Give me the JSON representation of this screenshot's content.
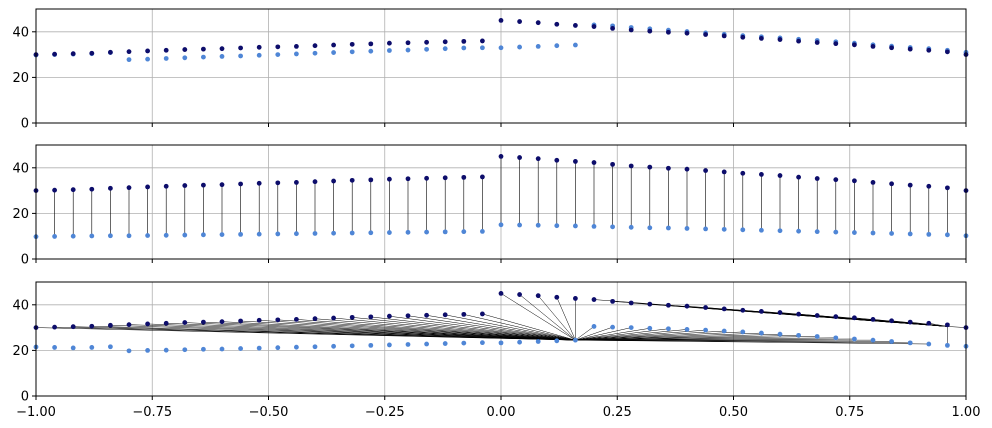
{
  "chart_data": [
    {
      "type": "scatter",
      "panel": "top",
      "xlim": [
        -1,
        1
      ],
      "ylim": [
        0,
        50
      ],
      "grid": true,
      "yticks": [
        "0",
        "20",
        "40"
      ],
      "series": [
        {
          "color": "#0d0d6b",
          "x": [
            -1.0,
            -0.96,
            -0.92,
            -0.88,
            -0.84,
            -0.8,
            -0.76,
            -0.72,
            -0.68,
            -0.64,
            -0.6,
            -0.56,
            -0.52,
            -0.48,
            -0.44,
            -0.4,
            -0.36,
            -0.32,
            -0.28,
            -0.24,
            -0.2,
            -0.16,
            -0.12,
            -0.08,
            -0.04,
            0.0,
            0.04,
            0.08,
            0.12,
            0.16,
            0.2,
            0.24,
            0.28,
            0.32,
            0.36,
            0.4,
            0.44,
            0.48,
            0.52,
            0.56,
            0.6,
            0.64,
            0.68,
            0.72,
            0.76,
            0.8,
            0.84,
            0.88,
            0.92,
            0.96,
            1.0
          ],
          "values": [
            30,
            30.2,
            30.4,
            30.6,
            31,
            31.3,
            31.6,
            31.9,
            32.2,
            32.4,
            32.6,
            32.9,
            33.2,
            33.4,
            33.6,
            33.9,
            34.2,
            34.5,
            34.7,
            35,
            35.2,
            35.4,
            35.6,
            35.8,
            36,
            45,
            44.5,
            44,
            43.3,
            42.8,
            42.3,
            41.5,
            40.8,
            40.3,
            39.8,
            39.4,
            38.8,
            38.2,
            37.6,
            37.1,
            36.6,
            35.9,
            35.3,
            34.8,
            34.3,
            33.6,
            33,
            32.4,
            31.9,
            31.2,
            30
          ]
        },
        {
          "color": "#4f86d6",
          "x": [
            -1.0,
            -0.96,
            -0.92,
            -0.88,
            -0.84,
            -0.8,
            -0.76,
            -0.72,
            -0.68,
            -0.64,
            -0.6,
            -0.56,
            -0.52,
            -0.48,
            -0.44,
            -0.4,
            -0.36,
            -0.32,
            -0.28,
            -0.24,
            -0.2,
            -0.16,
            -0.12,
            -0.08,
            -0.04,
            0.0,
            0.04,
            0.08,
            0.12,
            0.16,
            0.2,
            0.24,
            0.28,
            0.32,
            0.36,
            0.4,
            0.44,
            0.48,
            0.52,
            0.56,
            0.6,
            0.64,
            0.68,
            0.72,
            0.76,
            0.8,
            0.84,
            0.88,
            0.92,
            0.96,
            1.0
          ],
          "values": [
            29.8,
            30,
            30.2,
            30.4,
            30.9,
            27.8,
            28,
            28.3,
            28.6,
            28.9,
            29.2,
            29.4,
            29.7,
            30,
            30.3,
            30.6,
            30.9,
            31.2,
            31.5,
            31.8,
            32,
            32.3,
            32.6,
            32.9,
            33,
            33,
            33.3,
            33.6,
            33.9,
            34.2,
            43,
            42.6,
            41.9,
            41.3,
            40.7,
            40.1,
            39.5,
            38.9,
            38.3,
            37.8,
            37.3,
            36.7,
            36.2,
            35.6,
            35,
            34.3,
            33.7,
            33.1,
            32.6,
            31.9,
            31
          ]
        }
      ]
    },
    {
      "type": "scatter",
      "panel": "middle",
      "xlim": [
        -1,
        1
      ],
      "ylim": [
        0,
        50
      ],
      "grid": true,
      "yticks": [
        "0",
        "20",
        "40"
      ],
      "series": [
        {
          "color": "#0d0d6b",
          "x": [
            -1.0,
            -0.96,
            -0.92,
            -0.88,
            -0.84,
            -0.8,
            -0.76,
            -0.72,
            -0.68,
            -0.64,
            -0.6,
            -0.56,
            -0.52,
            -0.48,
            -0.44,
            -0.4,
            -0.36,
            -0.32,
            -0.28,
            -0.24,
            -0.2,
            -0.16,
            -0.12,
            -0.08,
            -0.04,
            0.0,
            0.04,
            0.08,
            0.12,
            0.16,
            0.2,
            0.24,
            0.28,
            0.32,
            0.36,
            0.4,
            0.44,
            0.48,
            0.52,
            0.56,
            0.6,
            0.64,
            0.68,
            0.72,
            0.76,
            0.8,
            0.84,
            0.88,
            0.92,
            0.96,
            1.0
          ],
          "values": [
            30,
            30.2,
            30.4,
            30.6,
            31,
            31.3,
            31.6,
            31.9,
            32.2,
            32.4,
            32.6,
            32.9,
            33.2,
            33.4,
            33.6,
            33.9,
            34.2,
            34.5,
            34.7,
            35,
            35.2,
            35.4,
            35.6,
            35.8,
            36,
            45,
            44.5,
            44,
            43.3,
            42.8,
            42.3,
            41.5,
            40.8,
            40.3,
            39.8,
            39.4,
            38.8,
            38.2,
            37.6,
            37.1,
            36.6,
            35.9,
            35.3,
            34.8,
            34.3,
            33.6,
            33,
            32.4,
            31.9,
            31.2,
            30
          ]
        },
        {
          "color": "#4f86d6",
          "x": [
            -1.0,
            -0.96,
            -0.92,
            -0.88,
            -0.84,
            -0.8,
            -0.76,
            -0.72,
            -0.68,
            -0.64,
            -0.6,
            -0.56,
            -0.52,
            -0.48,
            -0.44,
            -0.4,
            -0.36,
            -0.32,
            -0.28,
            -0.24,
            -0.2,
            -0.16,
            -0.12,
            -0.08,
            -0.04,
            0.0,
            0.04,
            0.08,
            0.12,
            0.16,
            0.2,
            0.24,
            0.28,
            0.32,
            0.36,
            0.4,
            0.44,
            0.48,
            0.52,
            0.56,
            0.6,
            0.64,
            0.68,
            0.72,
            0.76,
            0.8,
            0.84,
            0.88,
            0.92,
            0.96,
            1.0
          ],
          "values": [
            9.8,
            9.9,
            10,
            10.1,
            10.2,
            10.2,
            10.3,
            10.4,
            10.5,
            10.6,
            10.7,
            10.8,
            10.9,
            11,
            11.1,
            11.2,
            11.3,
            11.4,
            11.5,
            11.6,
            11.7,
            11.8,
            11.9,
            12,
            12.1,
            15,
            14.9,
            14.8,
            14.6,
            14.5,
            14.3,
            14.1,
            13.9,
            13.7,
            13.6,
            13.4,
            13.2,
            13,
            12.8,
            12.6,
            12.4,
            12.2,
            12,
            11.8,
            11.6,
            11.4,
            11.2,
            11,
            10.8,
            10.6,
            10.2
          ]
        }
      ]
    },
    {
      "type": "scatter",
      "panel": "bottom",
      "xlim": [
        -1,
        1
      ],
      "ylim": [
        0,
        50
      ],
      "grid": true,
      "yticks": [
        "0",
        "20",
        "40"
      ],
      "xticks": [
        "−1.00",
        "−0.75",
        "−0.50",
        "−0.25",
        "0.00",
        "0.25",
        "0.50",
        "0.75",
        "1.00"
      ],
      "hub_left": [
        0.16,
        24.5
      ],
      "hub_right": [
        0.96,
        30.5
      ],
      "series": [
        {
          "color": "#0d0d6b",
          "x": [
            -1.0,
            -0.96,
            -0.92,
            -0.88,
            -0.84,
            -0.8,
            -0.76,
            -0.72,
            -0.68,
            -0.64,
            -0.6,
            -0.56,
            -0.52,
            -0.48,
            -0.44,
            -0.4,
            -0.36,
            -0.32,
            -0.28,
            -0.24,
            -0.2,
            -0.16,
            -0.12,
            -0.08,
            -0.04,
            0.0,
            0.04,
            0.08,
            0.12,
            0.16,
            0.2,
            0.24,
            0.28,
            0.32,
            0.36,
            0.4,
            0.44,
            0.48,
            0.52,
            0.56,
            0.6,
            0.64,
            0.68,
            0.72,
            0.76,
            0.8,
            0.84,
            0.88,
            0.92,
            0.96,
            1.0
          ],
          "values": [
            30,
            30.2,
            30.4,
            30.6,
            31,
            31.3,
            31.6,
            31.9,
            32.2,
            32.4,
            32.6,
            32.9,
            33.2,
            33.4,
            33.6,
            33.9,
            34.2,
            34.5,
            34.7,
            35,
            35.2,
            35.4,
            35.6,
            35.8,
            36,
            45,
            44.5,
            44,
            43.3,
            42.8,
            42.3,
            41.5,
            40.8,
            40.3,
            39.8,
            39.4,
            38.8,
            38.2,
            37.6,
            37.1,
            36.6,
            35.9,
            35.3,
            34.8,
            34.3,
            33.6,
            33,
            32.4,
            31.9,
            31.2,
            30
          ]
        },
        {
          "color": "#4f86d6",
          "x": [
            -1.0,
            -0.96,
            -0.92,
            -0.88,
            -0.84,
            -0.8,
            -0.76,
            -0.72,
            -0.68,
            -0.64,
            -0.6,
            -0.56,
            -0.52,
            -0.48,
            -0.44,
            -0.4,
            -0.36,
            -0.32,
            -0.28,
            -0.24,
            -0.2,
            -0.16,
            -0.12,
            -0.08,
            -0.04,
            0.0,
            0.04,
            0.08,
            0.12,
            0.16,
            0.2,
            0.24,
            0.28,
            0.32,
            0.36,
            0.4,
            0.44,
            0.48,
            0.52,
            0.56,
            0.6,
            0.64,
            0.68,
            0.72,
            0.76,
            0.8,
            0.84,
            0.88,
            0.92,
            0.96,
            1.0
          ],
          "values": [
            21.5,
            21.3,
            21.1,
            21.3,
            21.6,
            19.8,
            20,
            20.1,
            20.3,
            20.5,
            20.6,
            20.8,
            21,
            21.2,
            21.4,
            21.6,
            21.8,
            22,
            22.2,
            22.4,
            22.6,
            22.8,
            23,
            23.2,
            23.4,
            23.3,
            23.6,
            23.9,
            24.2,
            24.5,
            30.5,
            30.2,
            30,
            29.7,
            29.5,
            29.2,
            28.9,
            28.5,
            28.1,
            27.6,
            27.1,
            26.6,
            26.1,
            25.5,
            25,
            24.5,
            23.9,
            23.3,
            22.8,
            22.2,
            21.8
          ]
        }
      ]
    }
  ]
}
